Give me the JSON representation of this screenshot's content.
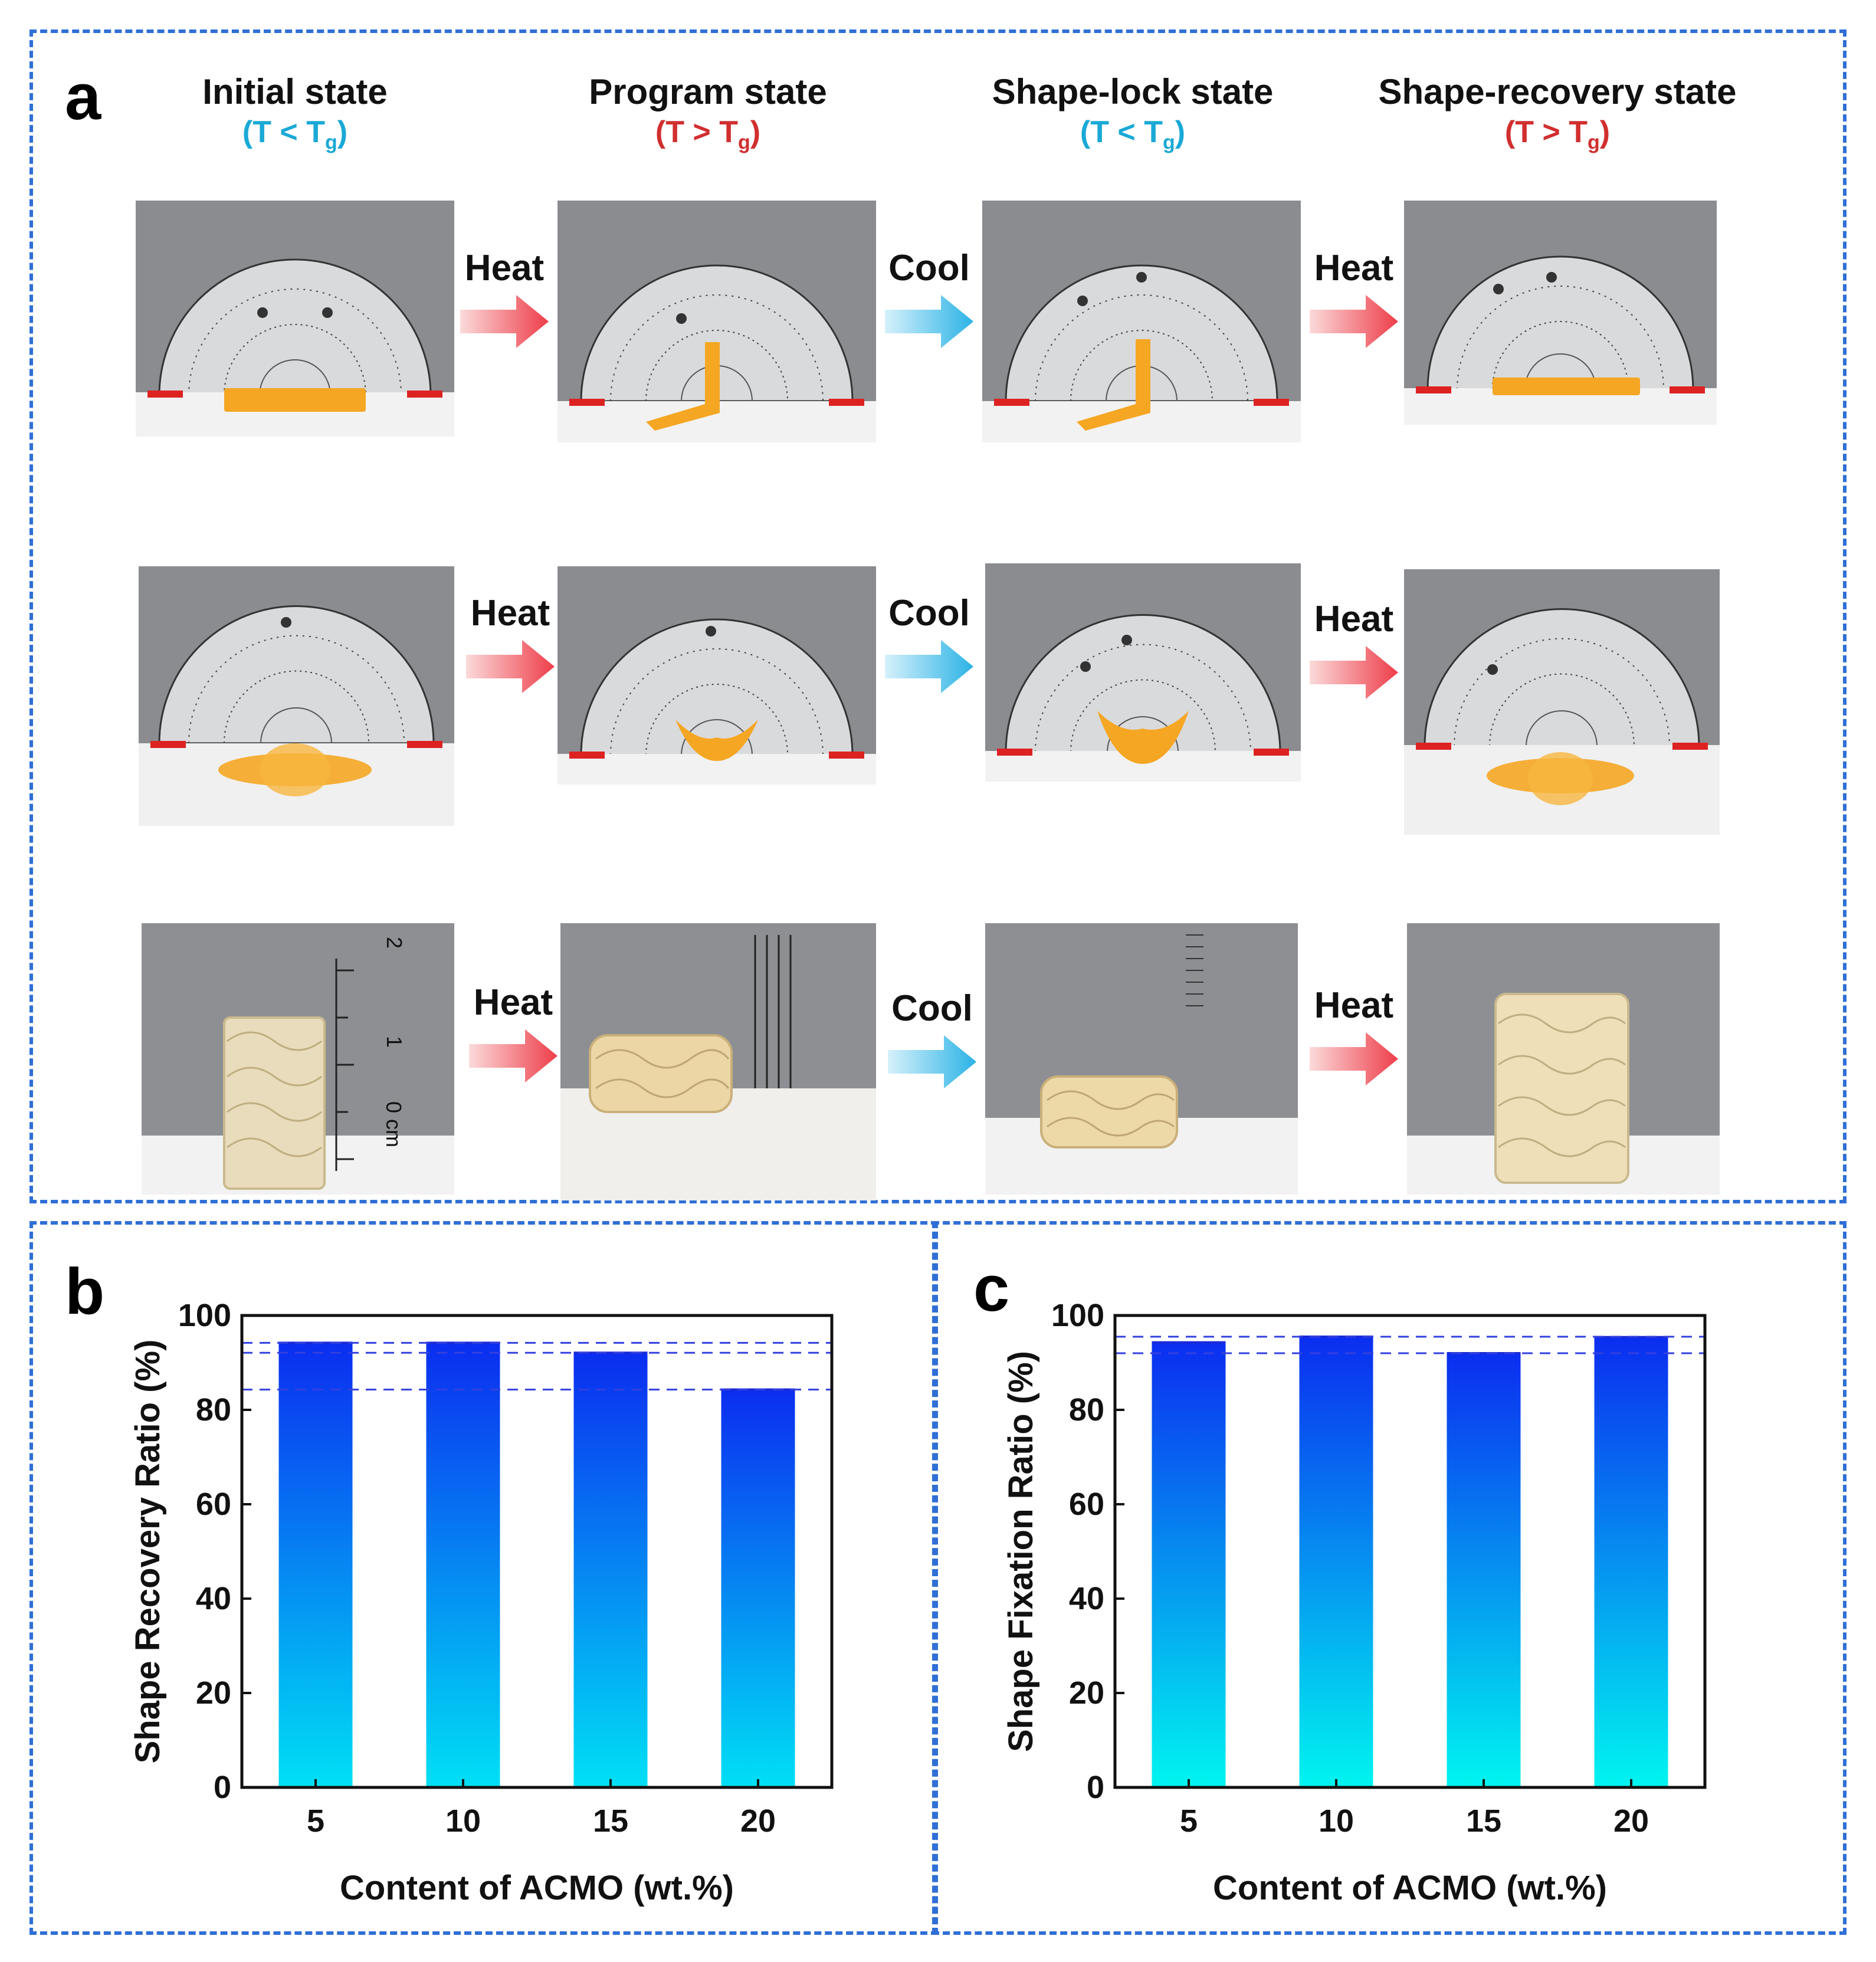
{
  "panel_a": {
    "letter": "a",
    "states": [
      {
        "name": "Initial state",
        "cond_main": "(T < T",
        "cond_sub": "g",
        "cond_end": ")",
        "color": "#1aa9d6"
      },
      {
        "name": "Program state",
        "cond_main": "(T > T",
        "cond_sub": "g",
        "cond_end": ")",
        "color": "#d12f2f"
      },
      {
        "name": "Shape-lock state",
        "cond_main": "(T < T",
        "cond_sub": "g",
        "cond_end": ")",
        "color": "#1aa9d6"
      },
      {
        "name": "Shape-recovery state",
        "cond_main": "(T > T",
        "cond_sub": "g",
        "cond_end": ")",
        "color": "#d12f2f"
      }
    ],
    "transitions": [
      {
        "label": "Heat",
        "color": "#f0545e"
      },
      {
        "label": "Cool",
        "color": "#3bbbe8"
      },
      {
        "label": "Heat",
        "color": "#f0545e"
      }
    ],
    "ruler_labels": [
      "2",
      "1",
      "0 cm"
    ]
  },
  "chart_data": [
    {
      "panel": "b",
      "type": "bar",
      "categories": [
        "5",
        "10",
        "15",
        "20"
      ],
      "values": [
        94.2,
        94.2,
        92.1,
        84.3
      ],
      "reference_lines": [
        94.2,
        92.1,
        84.3
      ],
      "xlabel": "Content of ACMO (wt.%)",
      "ylabel": "Shape Recovery Ratio (%)",
      "ylim": [
        0,
        100
      ],
      "yticks": [
        "0",
        "20",
        "40",
        "60",
        "80",
        "100"
      ],
      "grid": false,
      "bar_gradient": [
        "#0b2df0",
        "#00e0f5"
      ]
    },
    {
      "panel": "c",
      "type": "bar",
      "categories": [
        "5",
        "10",
        "15",
        "20"
      ],
      "values": [
        94.3,
        95.5,
        92.0,
        95.4
      ],
      "reference_lines": [
        95.5,
        92.0
      ],
      "xlabel": "Content of ACMO (wt.%)",
      "ylabel": "Shape Fixation Ratio (%)",
      "ylim": [
        0,
        100
      ],
      "yticks": [
        "0",
        "20",
        "40",
        "60",
        "80",
        "100"
      ],
      "grid": false,
      "bar_gradient": [
        "#0b2df0",
        "#00f5f0"
      ]
    }
  ]
}
